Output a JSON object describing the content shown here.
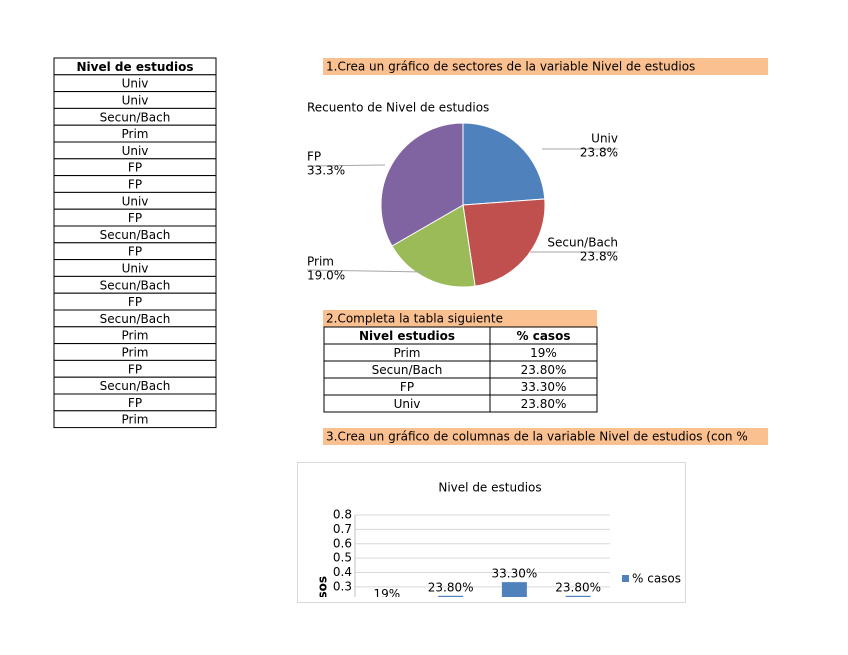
{
  "left_table": {
    "header": "Nivel de estudios",
    "rows": [
      "Univ",
      "Univ",
      "Secun/Bach",
      "Prim",
      "Univ",
      "FP",
      "FP",
      "Univ",
      "FP",
      "Secun/Bach",
      "FP",
      "Univ",
      "Secun/Bach",
      "FP",
      "Secun/Bach",
      "Prim",
      "Prim",
      "FP",
      "Secun/Bach",
      "FP",
      "Prim"
    ]
  },
  "tasks": [
    "1.Crea un gráfico de sectores de la variable Nivel de estudios",
    "2.Completa la tabla siguiente",
    "3.Crea un gráfico de columnas de la variable Nivel de estudios (con %"
  ],
  "summary_table": {
    "header": [
      "Nivel estudios",
      "% casos"
    ],
    "rows": [
      [
        "Prim",
        "19%"
      ],
      [
        "Secun/Bach",
        "23.80%"
      ],
      [
        "FP",
        "33.30%"
      ],
      [
        "Univ",
        "23.80%"
      ]
    ]
  },
  "chart_data": [
    {
      "type": "pie",
      "title": "Recuento de Nivel de estudios",
      "categories": [
        "Univ",
        "Secun/Bach",
        "Prim",
        "FP"
      ],
      "values": [
        23.8,
        23.8,
        19.0,
        33.3
      ],
      "value_labels": [
        "23.8%",
        "23.8%",
        "19.0%",
        "33.3%"
      ],
      "colors": [
        "#4f81bd",
        "#c0504d",
        "#9bbb59",
        "#8064a2"
      ]
    },
    {
      "type": "bar",
      "title": "Nivel de estudios",
      "y_label": "% casos",
      "categories": [
        null,
        null,
        null,
        null
      ],
      "series": [
        {
          "name": "% casos",
          "color": "#4f81bd",
          "values": [
            0.19,
            0.238,
            0.333,
            0.238
          ],
          "value_labels": [
            "19%",
            "23.80%",
            "33.30%",
            "23.80%"
          ]
        }
      ],
      "ylim": [
        0,
        0.8
      ],
      "yticks": [
        0.3,
        0.4,
        0.5,
        0.6,
        0.7,
        0.8
      ],
      "grid": true
    }
  ]
}
